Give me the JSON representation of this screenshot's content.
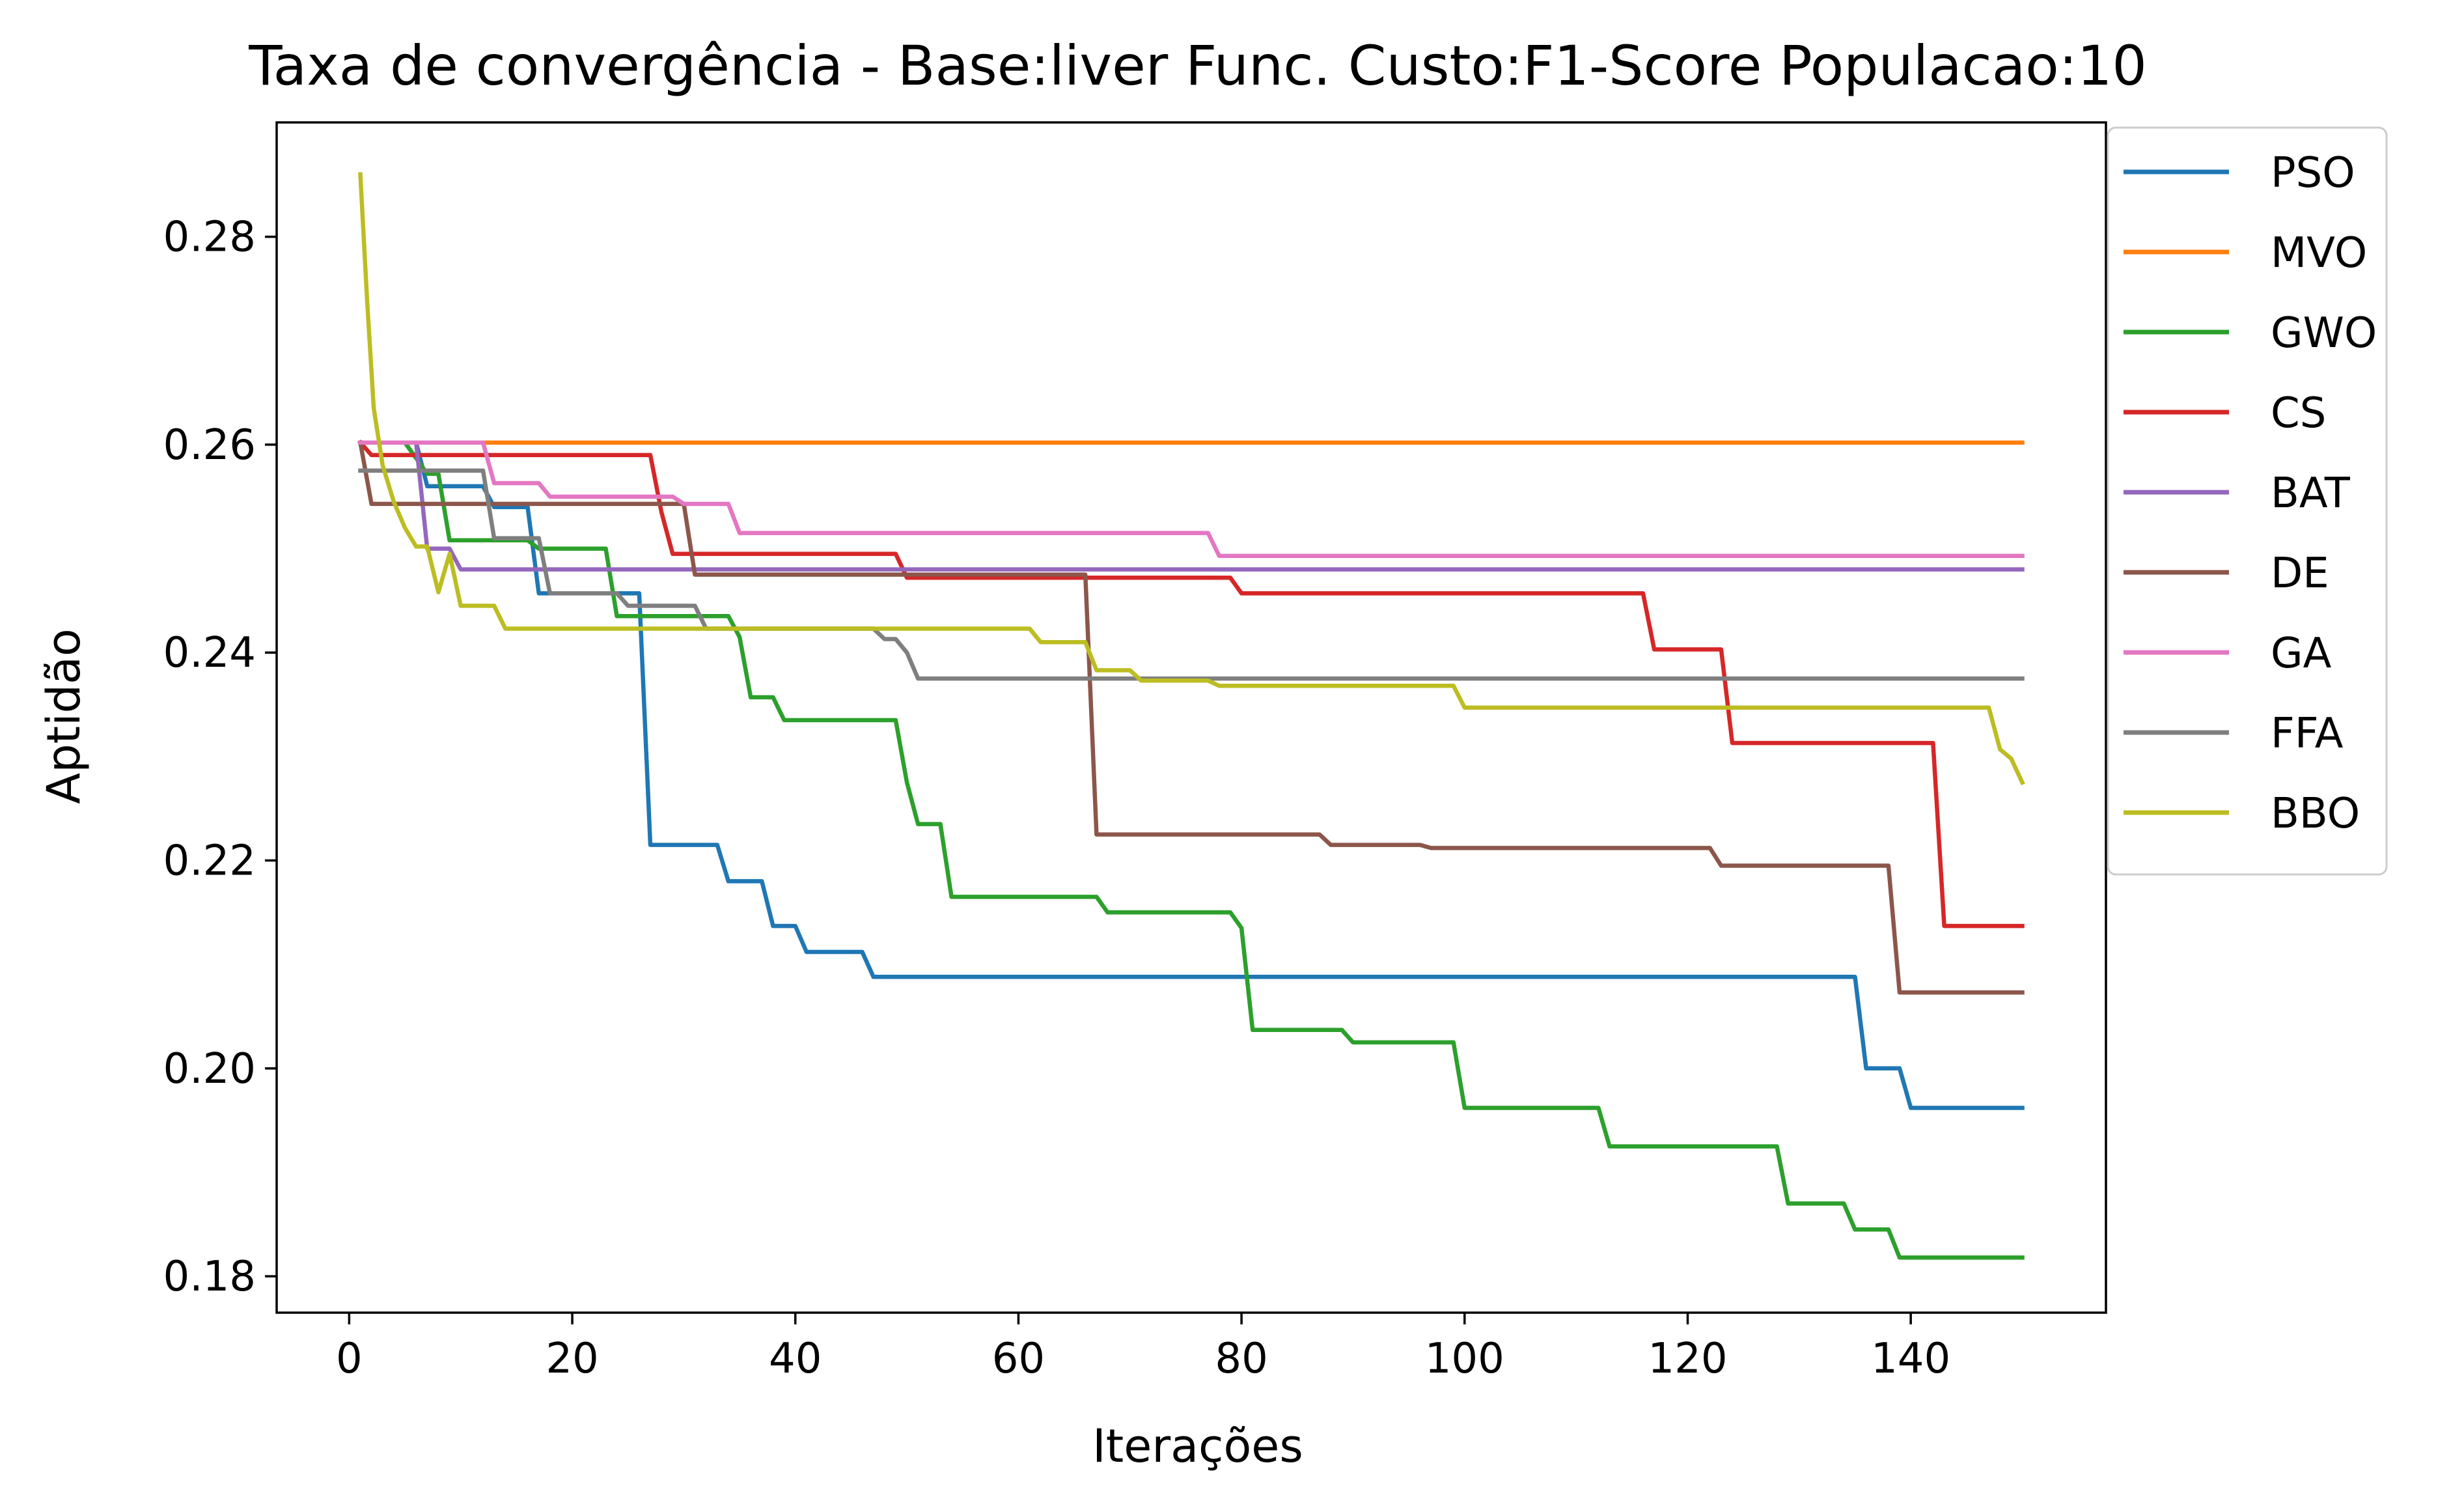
{
  "chart_data": {
    "type": "line",
    "title": "Taxa de convergência - Base:liver Func. Custo:F1-Score Populacao:10",
    "xlabel": "Iterações",
    "ylabel": "Aptidão",
    "xlim": [
      -6.5,
      157.5
    ],
    "ylim": [
      0.1765,
      0.291
    ],
    "x_ticks": [
      0,
      20,
      40,
      60,
      80,
      100,
      120,
      140
    ],
    "y_ticks": [
      0.18,
      0.2,
      0.22,
      0.24,
      0.26,
      0.28
    ],
    "y_tick_labels": [
      "0.18",
      "0.20",
      "0.22",
      "0.24",
      "0.26",
      "0.28"
    ],
    "grid": false,
    "legend_placement": "outside-top-right",
    "series": [
      {
        "name": "PSO",
        "color": "#1f77b4",
        "points": [
          [
            1,
            0.2602
          ],
          [
            6,
            0.2602
          ],
          [
            7,
            0.256
          ],
          [
            12,
            0.256
          ],
          [
            13,
            0.254
          ],
          [
            16,
            0.254
          ],
          [
            17,
            0.2457
          ],
          [
            26,
            0.2457
          ],
          [
            27,
            0.2215
          ],
          [
            33,
            0.2215
          ],
          [
            34,
            0.218
          ],
          [
            37,
            0.218
          ],
          [
            38,
            0.2137
          ],
          [
            40,
            0.2137
          ],
          [
            41,
            0.2112
          ],
          [
            46,
            0.2112
          ],
          [
            47,
            0.2088
          ],
          [
            135,
            0.2088
          ],
          [
            136,
            0.2
          ],
          [
            139,
            0.2
          ],
          [
            140,
            0.1962
          ],
          [
            150,
            0.1962
          ]
        ]
      },
      {
        "name": "MVO",
        "color": "#ff7f0e",
        "points": [
          [
            1,
            0.2602
          ],
          [
            150,
            0.2602
          ]
        ]
      },
      {
        "name": "GWO",
        "color": "#2ca02c",
        "points": [
          [
            1,
            0.2602
          ],
          [
            5,
            0.2602
          ],
          [
            7,
            0.2572
          ],
          [
            8,
            0.2572
          ],
          [
            9,
            0.2508
          ],
          [
            16,
            0.2508
          ],
          [
            17,
            0.25
          ],
          [
            23,
            0.25
          ],
          [
            24,
            0.2435
          ],
          [
            34,
            0.2435
          ],
          [
            35,
            0.2415
          ],
          [
            36,
            0.2357
          ],
          [
            38,
            0.2357
          ],
          [
            39,
            0.2335
          ],
          [
            49,
            0.2335
          ],
          [
            50,
            0.2275
          ],
          [
            51,
            0.2235
          ],
          [
            53,
            0.2235
          ],
          [
            54,
            0.2165
          ],
          [
            67,
            0.2165
          ],
          [
            68,
            0.215
          ],
          [
            79,
            0.215
          ],
          [
            80,
            0.2135
          ],
          [
            81,
            0.2037
          ],
          [
            89,
            0.2037
          ],
          [
            90,
            0.2025
          ],
          [
            99,
            0.2025
          ],
          [
            100,
            0.1962
          ],
          [
            112,
            0.1962
          ],
          [
            113,
            0.1925
          ],
          [
            128,
            0.1925
          ],
          [
            129,
            0.187
          ],
          [
            134,
            0.187
          ],
          [
            135,
            0.1845
          ],
          [
            138,
            0.1845
          ],
          [
            139,
            0.1818
          ],
          [
            150,
            0.1818
          ]
        ]
      },
      {
        "name": "CS",
        "color": "#d62728",
        "points": [
          [
            1,
            0.2602
          ],
          [
            2,
            0.259
          ],
          [
            27,
            0.259
          ],
          [
            28,
            0.2535
          ],
          [
            29,
            0.2495
          ],
          [
            49,
            0.2495
          ],
          [
            50,
            0.2472
          ],
          [
            79,
            0.2472
          ],
          [
            80,
            0.2457
          ],
          [
            116,
            0.2457
          ],
          [
            117,
            0.2403
          ],
          [
            123,
            0.2403
          ],
          [
            124,
            0.2313
          ],
          [
            142,
            0.2313
          ],
          [
            143,
            0.2137
          ],
          [
            150,
            0.2137
          ]
        ]
      },
      {
        "name": "BAT",
        "color": "#9467bd",
        "points": [
          [
            1,
            0.2602
          ],
          [
            6,
            0.2602
          ],
          [
            7,
            0.25
          ],
          [
            9,
            0.25
          ],
          [
            10,
            0.248
          ],
          [
            150,
            0.248
          ]
        ]
      },
      {
        "name": "DE",
        "color": "#8c564b",
        "points": [
          [
            1,
            0.2602
          ],
          [
            2,
            0.2543
          ],
          [
            30,
            0.2543
          ],
          [
            31,
            0.2475
          ],
          [
            66,
            0.2475
          ],
          [
            67,
            0.2225
          ],
          [
            87,
            0.2225
          ],
          [
            88,
            0.2215
          ],
          [
            96,
            0.2215
          ],
          [
            97,
            0.2212
          ],
          [
            122,
            0.2212
          ],
          [
            123,
            0.2195
          ],
          [
            138,
            0.2195
          ],
          [
            139,
            0.2073
          ],
          [
            150,
            0.2073
          ]
        ]
      },
      {
        "name": "GA",
        "color": "#e377c2",
        "points": [
          [
            1,
            0.2602
          ],
          [
            12,
            0.2602
          ],
          [
            13,
            0.2563
          ],
          [
            17,
            0.2563
          ],
          [
            18,
            0.255
          ],
          [
            29,
            0.255
          ],
          [
            30,
            0.2543
          ],
          [
            34,
            0.2543
          ],
          [
            35,
            0.2515
          ],
          [
            77,
            0.2515
          ],
          [
            78,
            0.2493
          ],
          [
            150,
            0.2493
          ]
        ]
      },
      {
        "name": "FFA",
        "color": "#7f7f7f",
        "points": [
          [
            1,
            0.2575
          ],
          [
            12,
            0.2575
          ],
          [
            13,
            0.251
          ],
          [
            17,
            0.251
          ],
          [
            18,
            0.2457
          ],
          [
            24,
            0.2457
          ],
          [
            25,
            0.2445
          ],
          [
            31,
            0.2445
          ],
          [
            32,
            0.2423
          ],
          [
            47,
            0.2423
          ],
          [
            48,
            0.2413
          ],
          [
            49,
            0.2413
          ],
          [
            50,
            0.24
          ],
          [
            51,
            0.2375
          ],
          [
            150,
            0.2375
          ]
        ]
      },
      {
        "name": "BBO",
        "color": "#bcbd22",
        "points": [
          [
            1,
            0.286
          ],
          [
            1.6,
            0.274
          ],
          [
            2.2,
            0.2635
          ],
          [
            3,
            0.258
          ],
          [
            4,
            0.2545
          ],
          [
            5,
            0.252
          ],
          [
            6,
            0.2502
          ],
          [
            7,
            0.2502
          ],
          [
            8,
            0.2458
          ],
          [
            9,
            0.2495
          ],
          [
            10,
            0.2445
          ],
          [
            13,
            0.2445
          ],
          [
            14,
            0.2423
          ],
          [
            61,
            0.2423
          ],
          [
            62,
            0.241
          ],
          [
            66,
            0.241
          ],
          [
            67,
            0.2383
          ],
          [
            70,
            0.2383
          ],
          [
            71,
            0.2373
          ],
          [
            77,
            0.2373
          ],
          [
            78,
            0.2368
          ],
          [
            99,
            0.2368
          ],
          [
            100,
            0.2347
          ],
          [
            147,
            0.2347
          ],
          [
            148,
            0.2307
          ],
          [
            149,
            0.2298
          ],
          [
            150,
            0.2275
          ]
        ]
      }
    ]
  }
}
